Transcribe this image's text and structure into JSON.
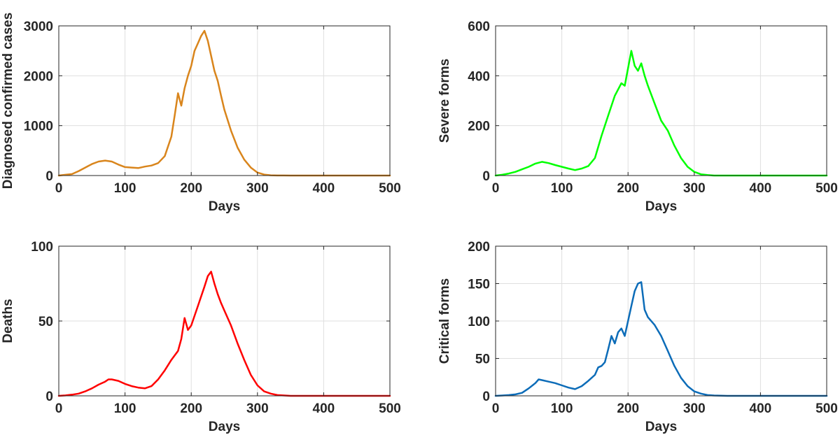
{
  "chart_data": [
    {
      "type": "line",
      "xlabel": "Days",
      "ylabel": "Diagnosed confirmed cases",
      "xlim": [
        0,
        500
      ],
      "ylim": [
        0,
        3000
      ],
      "xticks": [
        "0",
        "100",
        "200",
        "300",
        "400",
        "500"
      ],
      "yticks": [
        "0",
        "1000",
        "2000",
        "3000"
      ],
      "grid": true,
      "color": "#d9851c",
      "series": [
        {
          "x": [
            0,
            10,
            20,
            30,
            40,
            50,
            60,
            70,
            80,
            90,
            100,
            110,
            120,
            130,
            140,
            150,
            160,
            170,
            175,
            180,
            185,
            190,
            195,
            200,
            205,
            210,
            215,
            220,
            225,
            230,
            235,
            240,
            245,
            250,
            260,
            270,
            280,
            290,
            300,
            310,
            320,
            330,
            340,
            350,
            370,
            400,
            450,
            500
          ],
          "values": [
            0,
            15,
            30,
            90,
            160,
            230,
            280,
            300,
            280,
            220,
            170,
            160,
            150,
            180,
            200,
            250,
            390,
            780,
            1200,
            1650,
            1400,
            1750,
            2000,
            2200,
            2500,
            2650,
            2800,
            2900,
            2700,
            2400,
            2100,
            1900,
            1600,
            1320,
            900,
            560,
            320,
            160,
            60,
            20,
            5,
            2,
            1,
            0,
            0,
            0,
            0,
            0
          ]
        }
      ]
    },
    {
      "type": "line",
      "xlabel": "Days",
      "ylabel": "Severe forms",
      "xlim": [
        0,
        500
      ],
      "ylim": [
        0,
        600
      ],
      "xticks": [
        "0",
        "100",
        "200",
        "300",
        "400",
        "500"
      ],
      "yticks": [
        "0",
        "200",
        "400",
        "600"
      ],
      "grid": true,
      "color": "#00ff00",
      "series": [
        {
          "x": [
            0,
            10,
            20,
            30,
            40,
            50,
            60,
            70,
            80,
            90,
            100,
            110,
            120,
            130,
            140,
            150,
            160,
            170,
            180,
            190,
            195,
            200,
            205,
            210,
            215,
            220,
            225,
            230,
            240,
            250,
            260,
            270,
            280,
            290,
            300,
            310,
            320,
            330,
            350,
            400,
            450,
            500
          ],
          "values": [
            0,
            3,
            8,
            15,
            25,
            35,
            48,
            55,
            50,
            42,
            35,
            28,
            22,
            28,
            38,
            70,
            160,
            240,
            320,
            370,
            360,
            430,
            500,
            440,
            420,
            450,
            400,
            360,
            290,
            220,
            180,
            120,
            70,
            35,
            15,
            5,
            2,
            0,
            0,
            0,
            0,
            0
          ]
        }
      ]
    },
    {
      "type": "line",
      "xlabel": "Days",
      "ylabel": "Deaths",
      "xlim": [
        0,
        500
      ],
      "ylim": [
        0,
        100
      ],
      "xticks": [
        "0",
        "100",
        "200",
        "300",
        "400",
        "500"
      ],
      "yticks": [
        "0",
        "50",
        "100"
      ],
      "grid": true,
      "color": "#ff0000",
      "series": [
        {
          "x": [
            0,
            10,
            20,
            30,
            40,
            50,
            60,
            70,
            75,
            80,
            90,
            100,
            110,
            120,
            130,
            140,
            150,
            160,
            170,
            180,
            185,
            190,
            195,
            200,
            210,
            220,
            225,
            230,
            235,
            240,
            245,
            250,
            260,
            270,
            280,
            290,
            300,
            310,
            320,
            330,
            350,
            400,
            450,
            500
          ],
          "values": [
            0,
            0.3,
            0.8,
            1.5,
            3,
            5,
            7.5,
            9.5,
            11,
            11,
            10,
            8,
            6.5,
            5.5,
            5,
            6.5,
            11,
            17,
            24,
            30,
            38,
            52,
            44,
            47,
            60,
            73,
            80,
            83,
            75,
            68,
            62,
            57,
            47,
            35,
            24,
            14,
            7,
            3,
            1.5,
            0.5,
            0,
            0,
            0,
            0
          ]
        }
      ]
    },
    {
      "type": "line",
      "xlabel": "Days",
      "ylabel": "Critical forms",
      "xlim": [
        0,
        500
      ],
      "ylim": [
        0,
        200
      ],
      "xticks": [
        "0",
        "100",
        "200",
        "300",
        "400",
        "500"
      ],
      "yticks": [
        "0",
        "50",
        "100",
        "150",
        "200"
      ],
      "grid": true,
      "color": "#0c6cb8",
      "series": [
        {
          "x": [
            0,
            10,
            20,
            30,
            40,
            50,
            60,
            65,
            70,
            80,
            90,
            100,
            110,
            120,
            130,
            140,
            150,
            155,
            160,
            165,
            170,
            175,
            180,
            185,
            190,
            195,
            200,
            205,
            210,
            215,
            220,
            225,
            230,
            240,
            250,
            260,
            270,
            280,
            290,
            300,
            310,
            320,
            330,
            350,
            400,
            450,
            500
          ],
          "values": [
            0,
            0.5,
            1,
            2,
            4,
            10,
            17,
            22,
            21,
            19,
            17,
            14,
            11,
            9,
            13,
            20,
            28,
            38,
            40,
            45,
            62,
            80,
            70,
            85,
            90,
            80,
            100,
            120,
            140,
            150,
            152,
            115,
            105,
            95,
            80,
            60,
            40,
            24,
            13,
            6,
            3,
            1,
            0.5,
            0,
            0,
            0,
            0
          ]
        }
      ]
    }
  ]
}
